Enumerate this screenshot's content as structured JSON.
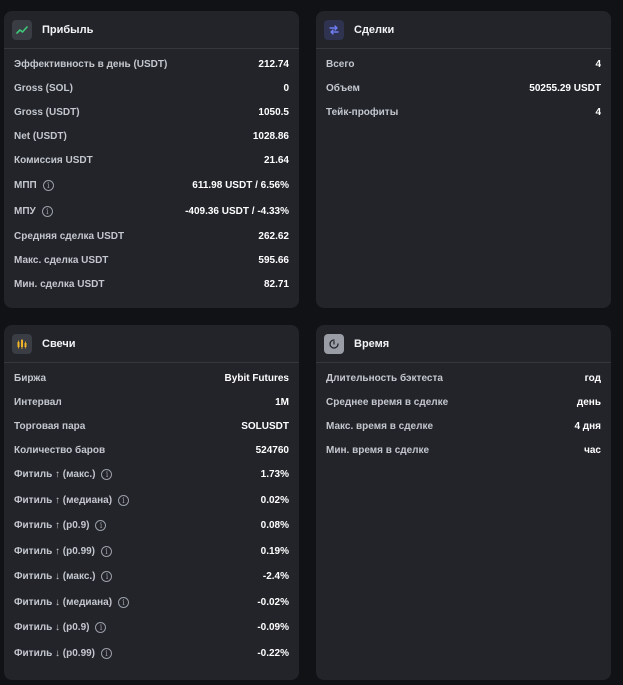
{
  "profit": {
    "title": "Прибыль",
    "icon": "trend-up-icon",
    "rows": [
      {
        "label": "Эффективность в день (USDT)",
        "value": "212.74"
      },
      {
        "label": "Gross (SOL)",
        "value": "0"
      },
      {
        "label": "Gross (USDT)",
        "value": "1050.5"
      },
      {
        "label": "Net (USDT)",
        "value": "1028.86"
      },
      {
        "label": "Комиссия USDT",
        "value": "21.64"
      },
      {
        "label": "МПП",
        "value": "611.98 USDT / 6.56%"
      },
      {
        "label": "МПУ",
        "value": "-409.36 USDT / -4.33%"
      },
      {
        "label": "Средняя сделка USDT",
        "value": "262.62"
      },
      {
        "label": "Макс. сделка USDT",
        "value": "595.66"
      },
      {
        "label": "Мин. сделка USDT",
        "value": "82.71"
      }
    ]
  },
  "deals": {
    "title": "Сделки",
    "icon": "arrows-swap-icon",
    "rows": [
      {
        "label": "Всего",
        "value": "4"
      },
      {
        "label": "Объем",
        "value": "50255.29 USDT"
      },
      {
        "label": "Тейк-профиты",
        "value": "4"
      }
    ]
  },
  "candles": {
    "title": "Свечи",
    "icon": "candles-icon",
    "rows": [
      {
        "label": "Биржа",
        "value": "Bybit Futures"
      },
      {
        "label": "Интервал",
        "value": "1M"
      },
      {
        "label": "Торговая пара",
        "value": "SOLUSDT"
      },
      {
        "label": "Количество баров",
        "value": "524760"
      },
      {
        "label": "Фитиль ↑ (макс.)",
        "value": "1.73%"
      },
      {
        "label": "Фитиль ↑ (медиана)",
        "value": "0.02%"
      },
      {
        "label": "Фитиль ↑ (p0.9)",
        "value": "0.08%"
      },
      {
        "label": "Фитиль ↑ (p0.99)",
        "value": "0.19%"
      },
      {
        "label": "Фитиль ↓ (макс.)",
        "value": "-2.4%"
      },
      {
        "label": "Фитиль ↓ (медиана)",
        "value": "-0.02%"
      },
      {
        "label": "Фитиль ↓ (p0.9)",
        "value": "-0.09%"
      },
      {
        "label": "Фитиль ↓ (p0.99)",
        "value": "-0.22%"
      }
    ]
  },
  "time": {
    "title": "Время",
    "icon": "clock-icon",
    "rows": [
      {
        "label": "Длительность бэктеста",
        "value": "год"
      },
      {
        "label": "Среднее время в сделке",
        "value": "день"
      },
      {
        "label": "Макс. время в сделке",
        "value": "4 дня"
      },
      {
        "label": "Мин. время в сделке",
        "value": "час"
      }
    ]
  },
  "info_symbol": "i",
  "colors": {
    "background": "#111215",
    "card": "#22242a",
    "profit_icon_bg": "#3a3d44",
    "profit_icon": "#3ec97a",
    "deals_icon_bg": "#2f3350",
    "deals_icon": "#6f7cf2",
    "candles_icon_bg": "#3a3d44",
    "candles_icon": "#f0b429",
    "time_icon_bg": "#9a9da5"
  }
}
